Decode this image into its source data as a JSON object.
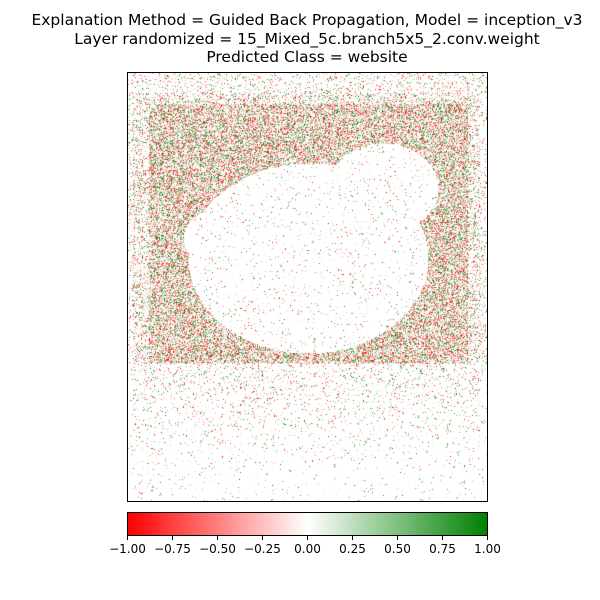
{
  "title": {
    "line1": "Explanation Method = Guided Back Propagation, Model = inception_v3",
    "line2": "Layer randomized = 15_Mixed_5c.branch5x5_2.conv.weight",
    "line3": "Predicted Class = website"
  },
  "heatmap": {
    "description_colors": {
      "negative": "#ff0000",
      "neutral": "#ffffff",
      "positive": "#008000"
    }
  },
  "colorbar": {
    "range": [
      -1.0,
      1.0
    ],
    "gradient_colors": [
      "#ff0000",
      "#ffffff",
      "#008000"
    ],
    "ticks": [
      "−1.00",
      "−0.75",
      "−0.50",
      "−0.25",
      "0.00",
      "0.25",
      "0.50",
      "0.75",
      "1.00"
    ]
  }
}
